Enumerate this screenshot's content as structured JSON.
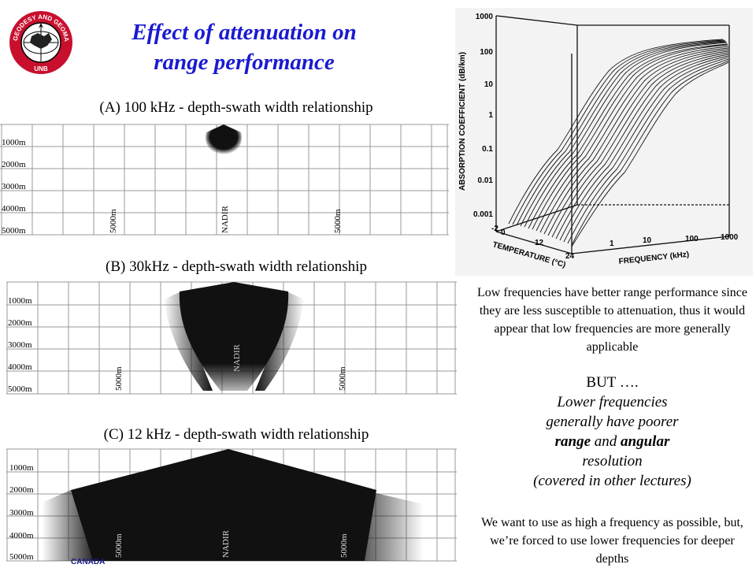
{
  "logo": {
    "ring_text": "GEODESY AND GEOMATICS ENGINEERING",
    "bottom_text": "UNB"
  },
  "title": {
    "line1": "Effect of attenuation on",
    "line2": "range performance"
  },
  "panels": [
    {
      "id": "A",
      "caption": "(A) 100 kHz - depth-swath width relationship",
      "depth_labels": [
        "1000m",
        "2000m",
        "3000m",
        "4000m",
        "5000m"
      ],
      "vertical_labels": [
        "5000m",
        "NADIR",
        "5000m"
      ]
    },
    {
      "id": "B",
      "caption": "(B) 30kHz - depth-swath width relationship",
      "depth_labels": [
        "1000m",
        "2000m",
        "3000m",
        "4000m",
        "5000m"
      ],
      "vertical_labels": [
        "5000m",
        "NADIR",
        "5000m"
      ]
    },
    {
      "id": "C",
      "caption": "(C) 12 kHz - depth-swath width relationship",
      "depth_labels": [
        "1000m",
        "2000m",
        "3000m",
        "4000m",
        "5000m"
      ],
      "vertical_labels": [
        "5000m",
        "NADIR",
        "5000m"
      ]
    }
  ],
  "absorption_chart": {
    "ylabel": "ABSORPTION COEFFICIENT (dB/km)",
    "y_ticks": [
      "1000",
      "100",
      "10",
      "1",
      "0.1",
      "0.01",
      "0.001"
    ],
    "temperature_label": "TEMPERATURE (°C)",
    "temperature_ticks": [
      "-2",
      "0",
      "12",
      "24"
    ],
    "frequency_label": "FREQUENCY (kHz)",
    "frequency_ticks": [
      "1",
      "10",
      "100",
      "1000"
    ]
  },
  "right_text": {
    "body": "Low frequencies have better range performance since they are less susceptible to attenuation, thus it would appear that low frequencies are more generally applicable",
    "but": "BUT ….",
    "line1": "Lower frequencies",
    "line2": "generally have poorer",
    "line3_bold1": "range",
    "line3_mid": " and ",
    "line3_bold2": "angular",
    "line4": "resolution",
    "line5": "(covered in other lectures)",
    "bottom": "We want to use as high a frequency as possible, but, we’re forced to use lower frequencies for deeper depths"
  },
  "footer": {
    "canada": "CANADA"
  }
}
